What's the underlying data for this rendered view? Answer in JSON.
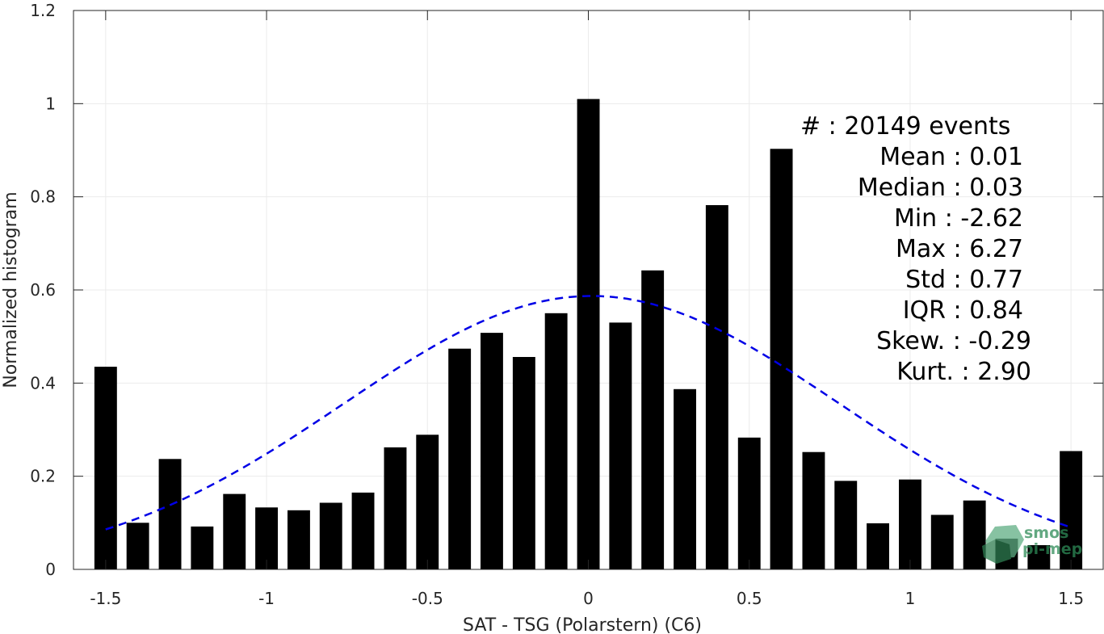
{
  "chart_data": {
    "type": "bar",
    "xlabel": "SAT - TSG (Polarstern) (C6)",
    "ylabel": "Normalized histogram",
    "xlim": [
      -1.6,
      1.6
    ],
    "ylim": [
      0,
      1.2
    ],
    "x_ticks": [
      "-1.5",
      "-1",
      "-0.5",
      "0",
      "0.5",
      "1",
      "1.5"
    ],
    "x_tick_values": [
      -1.5,
      -1,
      -0.5,
      0,
      0.5,
      1,
      1.5
    ],
    "y_ticks": [
      "0",
      "0.2",
      "0.4",
      "0.6",
      "0.8",
      "1",
      "1.2"
    ],
    "y_tick_values": [
      0,
      0.2,
      0.4,
      0.6,
      0.8,
      1,
      1.2
    ],
    "grid": true,
    "bar_color": "#000000",
    "bar_width": 0.07,
    "x": [
      -1.5,
      -1.4,
      -1.3,
      -1.2,
      -1.1,
      -1.0,
      -0.9,
      -0.8,
      -0.7,
      -0.6,
      -0.5,
      -0.4,
      -0.3,
      -0.2,
      -0.1,
      0.0,
      0.1,
      0.2,
      0.3,
      0.4,
      0.5,
      0.6,
      0.7,
      0.8,
      0.9,
      1.0,
      1.1,
      1.2,
      1.3,
      1.4,
      1.5
    ],
    "values": [
      0.435,
      0.1,
      0.237,
      0.092,
      0.162,
      0.133,
      0.127,
      0.143,
      0.165,
      0.262,
      0.289,
      0.474,
      0.508,
      0.456,
      0.55,
      1.01,
      0.53,
      0.642,
      0.387,
      0.782,
      0.283,
      0.903,
      0.252,
      0.19,
      0.099,
      0.193,
      0.117,
      0.148,
      0.066,
      0.052,
      0.254
    ],
    "fit": {
      "type": "gaussian",
      "mean": 0.01,
      "std": 0.77,
      "peak": 0.587,
      "color": "#0000e6",
      "dashed": true
    },
    "stats": [
      "#  : 20149 events",
      "Mean : 0.01",
      "Median : 0.03",
      "Min : -2.62",
      "Max : 6.27",
      "Std : 0.77",
      "IQR : 0.84",
      "Skew. : -0.29",
      "Kurt. : 2.90"
    ]
  },
  "logo": {
    "line1": "smos",
    "line2": "pi-mep",
    "color": "#2e8b57"
  }
}
